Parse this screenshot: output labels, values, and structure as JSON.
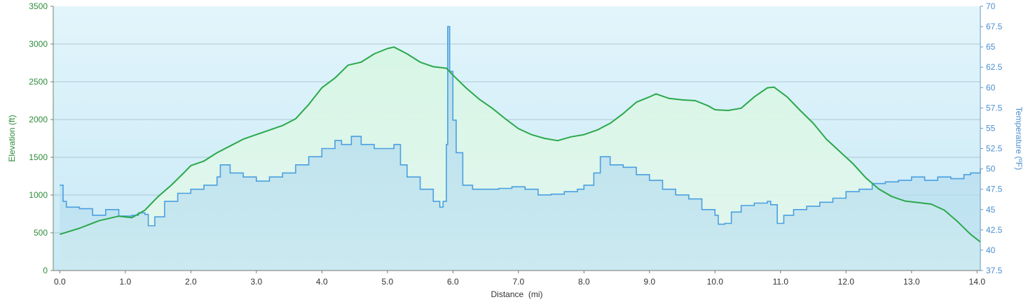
{
  "chart_data": {
    "type": "area",
    "xlabel": "Distance  (mi)",
    "ylabel_left": "Elevation (ft)",
    "ylabel_right": "Temperature (ºF)",
    "xlim": [
      -0.1,
      14.05
    ],
    "ylim_left": [
      0,
      3500
    ],
    "ylim_right": [
      37.5,
      70
    ],
    "x_ticks": [
      "0.0",
      "1.0",
      "2.0",
      "3.0",
      "4.0",
      "5.0",
      "6.0",
      "7.0",
      "8.0",
      "9.0",
      "10.0",
      "11.0",
      "12.0",
      "13.0",
      "14.0"
    ],
    "y_left_ticks": [
      "0",
      "500",
      "1000",
      "1500",
      "2000",
      "2500",
      "3000",
      "3500"
    ],
    "y_right_ticks": [
      "37.5",
      "40",
      "42.5",
      "45",
      "47.5",
      "50",
      "52.5",
      "55",
      "57.5",
      "60",
      "62.5",
      "65",
      "67.5",
      "70"
    ],
    "grid": true,
    "colors": {
      "elevation_line": "#2aa84a",
      "elevation_fill": "#d8f5e4",
      "temperature_line": "#4a9fe0",
      "temperature_fill": "#b8def0",
      "plot_background": "#d3eef8",
      "grid": "#9bb8c8"
    },
    "series": [
      {
        "axis": "left",
        "x": [
          0.0,
          0.3,
          0.6,
          0.9,
          1.1,
          1.3,
          1.5,
          1.7,
          1.9,
          2.0,
          2.2,
          2.4,
          2.6,
          2.8,
          3.0,
          3.2,
          3.4,
          3.6,
          3.8,
          4.0,
          4.2,
          4.4,
          4.6,
          4.8,
          5.0,
          5.1,
          5.3,
          5.5,
          5.7,
          5.9,
          6.0,
          6.2,
          6.4,
          6.6,
          6.8,
          7.0,
          7.2,
          7.4,
          7.6,
          7.8,
          8.0,
          8.2,
          8.4,
          8.6,
          8.8,
          9.0,
          9.1,
          9.3,
          9.5,
          9.7,
          9.9,
          10.0,
          10.2,
          10.4,
          10.6,
          10.8,
          10.9,
          11.1,
          11.3,
          11.5,
          11.7,
          11.9,
          12.1,
          12.3,
          12.5,
          12.7,
          12.9,
          13.1,
          13.3,
          13.5,
          13.7,
          13.9,
          14.05
        ],
        "values": [
          480,
          560,
          660,
          720,
          700,
          800,
          980,
          1130,
          1300,
          1390,
          1450,
          1560,
          1650,
          1740,
          1800,
          1860,
          1920,
          2010,
          2200,
          2420,
          2550,
          2720,
          2760,
          2870,
          2940,
          2960,
          2870,
          2760,
          2700,
          2680,
          2590,
          2420,
          2270,
          2150,
          2010,
          1880,
          1800,
          1750,
          1720,
          1770,
          1800,
          1860,
          1950,
          2080,
          2230,
          2300,
          2340,
          2280,
          2260,
          2250,
          2180,
          2130,
          2120,
          2150,
          2300,
          2420,
          2430,
          2300,
          2120,
          1950,
          1740,
          1580,
          1420,
          1230,
          1080,
          980,
          920,
          900,
          880,
          800,
          650,
          480,
          380
        ]
      },
      {
        "axis": "right",
        "x": [
          0.0,
          0.05,
          0.1,
          0.3,
          0.5,
          0.7,
          0.9,
          1.1,
          1.2,
          1.3,
          1.35,
          1.45,
          1.6,
          1.8,
          2.0,
          2.2,
          2.4,
          2.45,
          2.6,
          2.8,
          3.0,
          3.2,
          3.4,
          3.6,
          3.8,
          4.0,
          4.2,
          4.3,
          4.45,
          4.6,
          4.8,
          5.0,
          5.1,
          5.2,
          5.3,
          5.5,
          5.7,
          5.8,
          5.85,
          5.9,
          5.92,
          5.95,
          6.0,
          6.05,
          6.15,
          6.3,
          6.5,
          6.7,
          6.9,
          7.1,
          7.3,
          7.5,
          7.7,
          7.9,
          8.0,
          8.15,
          8.25,
          8.4,
          8.6,
          8.8,
          9.0,
          9.2,
          9.4,
          9.6,
          9.8,
          10.0,
          10.05,
          10.15,
          10.25,
          10.4,
          10.6,
          10.8,
          10.85,
          10.95,
          11.05,
          11.2,
          11.4,
          11.6,
          11.8,
          12.0,
          12.2,
          12.4,
          12.6,
          12.8,
          13.0,
          13.2,
          13.4,
          13.6,
          13.8,
          13.9,
          14.05
        ],
        "values": [
          48,
          46,
          45.3,
          45.1,
          44.3,
          45,
          44.2,
          44.3,
          44.6,
          44.4,
          43,
          44.1,
          46,
          47,
          47.5,
          48,
          49,
          50.5,
          49.5,
          49,
          48.5,
          49,
          49.5,
          50.5,
          51.5,
          52.5,
          53.5,
          53,
          54,
          53,
          52.5,
          52.5,
          53,
          50.5,
          49,
          47.5,
          46,
          45.3,
          46,
          53,
          67.5,
          62,
          56,
          52,
          48,
          47.5,
          47.5,
          47.6,
          47.8,
          47.5,
          46.8,
          46.9,
          47.2,
          47.5,
          48,
          49.5,
          51.5,
          50.5,
          50.2,
          49.3,
          48.6,
          47.5,
          46.8,
          46.3,
          45,
          44.3,
          43.2,
          43.3,
          44.7,
          45.5,
          45.8,
          46,
          45.6,
          43.3,
          44.3,
          45,
          45.4,
          45.9,
          46.4,
          47.2,
          47.5,
          48.2,
          48.4,
          48.6,
          49,
          48.6,
          49,
          48.8,
          49.3,
          49.5,
          50
        ]
      }
    ]
  }
}
